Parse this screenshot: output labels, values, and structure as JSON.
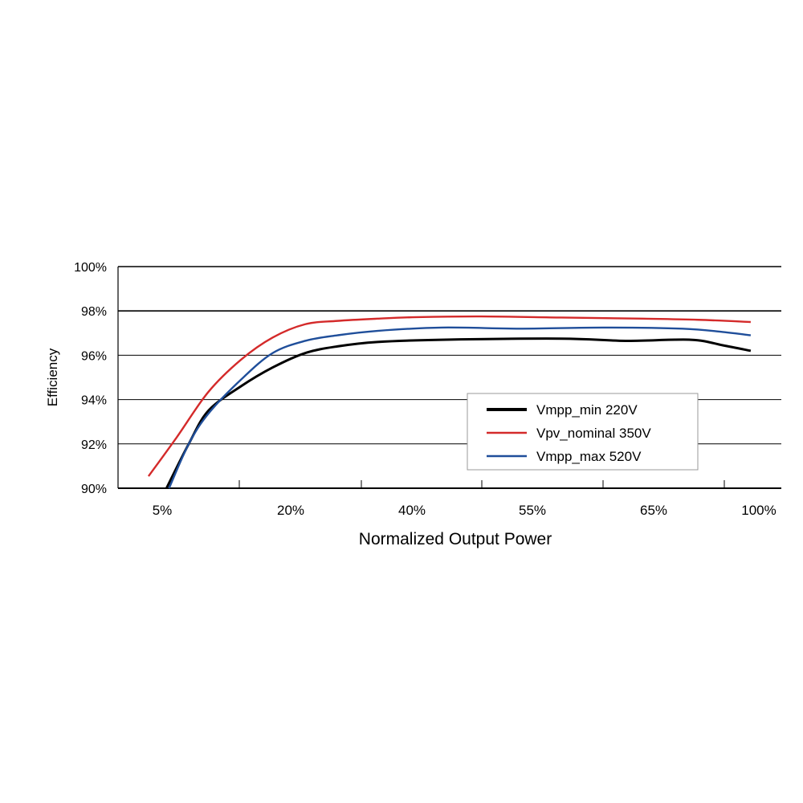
{
  "chart_data": {
    "type": "line",
    "title": "",
    "xlabel": "Normalized Output Power",
    "ylabel": "Efficiency",
    "x_tick_labels": [
      "5%",
      "20%",
      "40%",
      "55%",
      "65%",
      "100%"
    ],
    "x_tick_values": [
      5,
      20,
      40,
      55,
      65,
      100
    ],
    "y_tick_labels": [
      "90%",
      "92%",
      "94%",
      "96%",
      "98%",
      "100%"
    ],
    "y_tick_values": [
      90,
      92,
      94,
      96,
      98,
      100
    ],
    "ylim": [
      90,
      100
    ],
    "grid": "horizontal",
    "legend_position": "center-right",
    "series": [
      {
        "name": "Vmpp_min 220V",
        "color": "#000000",
        "x": [
          5.5,
          8.1,
          10.4,
          14.2,
          17.9,
          22.4,
          27.7,
          34.3,
          43.7,
          57.4,
          62.7,
          77.3,
          88,
          97.3
        ],
        "y": [
          90,
          92,
          93.5,
          94.6,
          95.45,
          96.1,
          96.4,
          96.6,
          96.7,
          96.75,
          96.65,
          96.7,
          96.45,
          96.2
        ]
      },
      {
        "name": "Vpv_nominal 350V",
        "color": "#d42a2a",
        "x": [
          3.4,
          6.7,
          10.4,
          14.2,
          17.9,
          22.4,
          27.7,
          34.3,
          40.7,
          48.7,
          57.4,
          64.1,
          79.9,
          97.3
        ],
        "y": [
          90.54,
          92.3,
          94.35,
          95.8,
          96.8,
          97.4,
          97.55,
          97.65,
          97.72,
          97.75,
          97.7,
          97.65,
          97.6,
          97.5
        ]
      },
      {
        "name": "Vmpp_max 520V",
        "color": "#1f4e9a",
        "x": [
          5.8,
          8.1,
          10.4,
          14.2,
          17.9,
          22.4,
          27.7,
          34.3,
          43.7,
          53.7,
          60.8,
          74.6,
          88,
          97.3
        ],
        "y": [
          90,
          92,
          93.37,
          94.9,
          96.1,
          96.65,
          96.9,
          97.1,
          97.25,
          97.2,
          97.25,
          97.2,
          97.05,
          96.9
        ]
      }
    ]
  }
}
